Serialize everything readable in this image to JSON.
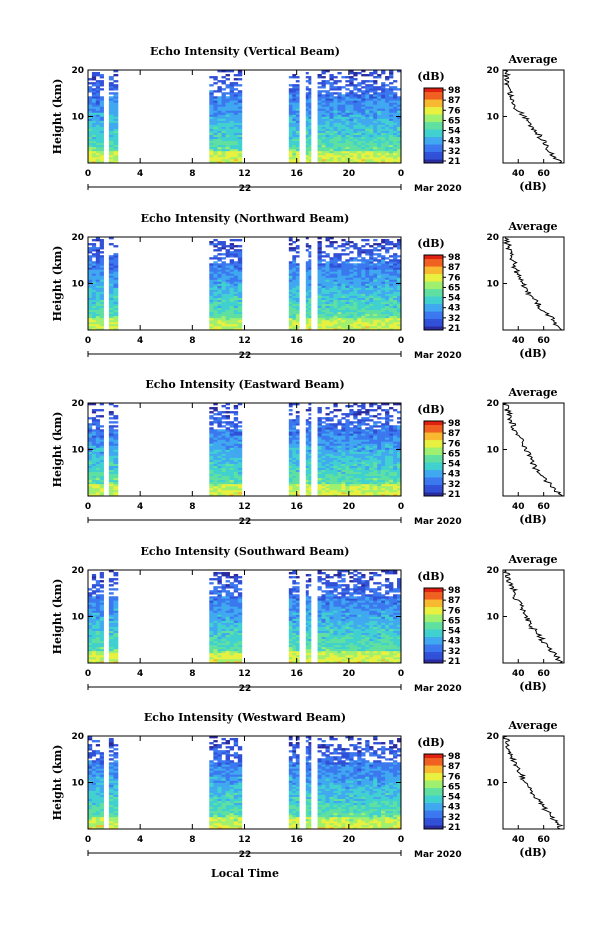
{
  "figure": {
    "x_axis_title": "Local Time",
    "date_label": "Mar 2020",
    "day_label": "22",
    "colorbar_unit": "(dB)",
    "avg_title": "Average",
    "avg_xlabel": "(dB)",
    "height_label": "Height (km)"
  },
  "colors": {
    "colormap": [
      "#2a2a9e",
      "#3050d8",
      "#3b78f0",
      "#40a8f0",
      "#40d0d0",
      "#60e0a0",
      "#a0f070",
      "#e8f040",
      "#f8b830",
      "#f06020",
      "#e02010"
    ]
  },
  "chart_data": [
    {
      "type": "heatmap",
      "title": "Echo Intensity (Vertical Beam)",
      "ylabel": "Height (km)",
      "xlabel": "Local Time",
      "x_ticks": [
        "0",
        "4",
        "8",
        "12",
        "16",
        "20",
        "0"
      ],
      "y_ticks": [
        "20",
        "10"
      ],
      "colorbar_ticks": [
        "98",
        "87",
        "76",
        "65",
        "54",
        "43",
        "32",
        "21"
      ],
      "xlim": [
        0,
        24
      ],
      "ylim": [
        0,
        20
      ],
      "data_segments_hours": [
        [
          0,
          1.2
        ],
        [
          1.6,
          2.3
        ],
        [
          9.3,
          11.8
        ],
        [
          15.4,
          16.2
        ],
        [
          16.7,
          17.1
        ],
        [
          17.6,
          24
        ]
      ],
      "average": {
        "title": "Average",
        "xlabel": "(dB)",
        "x_ticks": [
          "40",
          "60"
        ],
        "y_ticks": [
          "20",
          "10"
        ],
        "profile_db": [
          [
            0,
            74
          ],
          [
            2,
            66
          ],
          [
            4,
            62
          ],
          [
            6,
            56
          ],
          [
            8,
            50
          ],
          [
            10,
            45
          ],
          [
            11,
            42
          ],
          [
            12,
            38
          ],
          [
            14,
            34
          ],
          [
            16,
            33
          ],
          [
            18,
            31
          ],
          [
            20,
            30
          ]
        ]
      }
    },
    {
      "type": "heatmap",
      "title": "Echo Intensity (Northward Beam)",
      "ylabel": "Height (km)",
      "xlabel": "Local Time",
      "x_ticks": [
        "0",
        "4",
        "8",
        "12",
        "16",
        "20",
        "0"
      ],
      "y_ticks": [
        "20",
        "10"
      ],
      "colorbar_ticks": [
        "98",
        "87",
        "76",
        "65",
        "54",
        "43",
        "32",
        "21"
      ],
      "xlim": [
        0,
        24
      ],
      "ylim": [
        0,
        20
      ],
      "data_segments_hours": [
        [
          0,
          1.2
        ],
        [
          1.6,
          2.3
        ],
        [
          9.3,
          11.8
        ],
        [
          15.4,
          16.2
        ],
        [
          16.7,
          17.1
        ],
        [
          17.6,
          24
        ]
      ],
      "average": {
        "title": "Average",
        "xlabel": "(dB)",
        "x_ticks": [
          "40",
          "60"
        ],
        "y_ticks": [
          "20",
          "10"
        ],
        "profile_db": [
          [
            0,
            74
          ],
          [
            2,
            68
          ],
          [
            4,
            60
          ],
          [
            6,
            54
          ],
          [
            8,
            48
          ],
          [
            10,
            44
          ],
          [
            12,
            40
          ],
          [
            13,
            38
          ],
          [
            15,
            36
          ],
          [
            17,
            33
          ],
          [
            19,
            31
          ],
          [
            20,
            30
          ]
        ]
      }
    },
    {
      "type": "heatmap",
      "title": "Echo Intensity (Eastward Beam)",
      "ylabel": "Height (km)",
      "xlabel": "Local Time",
      "x_ticks": [
        "0",
        "4",
        "8",
        "12",
        "16",
        "20",
        "0"
      ],
      "y_ticks": [
        "20",
        "10"
      ],
      "colorbar_ticks": [
        "98",
        "87",
        "76",
        "65",
        "54",
        "43",
        "32",
        "21"
      ],
      "xlim": [
        0,
        24
      ],
      "ylim": [
        0,
        20
      ],
      "data_segments_hours": [
        [
          0,
          1.2
        ],
        [
          1.6,
          2.3
        ],
        [
          9.3,
          11.8
        ],
        [
          15.4,
          16.2
        ],
        [
          16.7,
          17.1
        ],
        [
          17.6,
          24
        ]
      ],
      "average": {
        "title": "Average",
        "xlabel": "(dB)",
        "x_ticks": [
          "40",
          "60"
        ],
        "y_ticks": [
          "20",
          "10"
        ],
        "profile_db": [
          [
            0,
            74
          ],
          [
            2,
            66
          ],
          [
            4,
            60
          ],
          [
            6,
            54
          ],
          [
            8,
            50
          ],
          [
            10,
            46
          ],
          [
            12,
            42
          ],
          [
            14,
            38
          ],
          [
            16,
            35
          ],
          [
            18,
            32
          ],
          [
            20,
            30
          ]
        ]
      }
    },
    {
      "type": "heatmap",
      "title": "Echo Intensity (Southward Beam)",
      "ylabel": "Height (km)",
      "xlabel": "Local Time",
      "x_ticks": [
        "0",
        "4",
        "8",
        "12",
        "16",
        "20",
        "0"
      ],
      "y_ticks": [
        "20",
        "10"
      ],
      "colorbar_ticks": [
        "98",
        "87",
        "76",
        "65",
        "54",
        "43",
        "32",
        "21"
      ],
      "xlim": [
        0,
        24
      ],
      "ylim": [
        0,
        20
      ],
      "data_segments_hours": [
        [
          0,
          1.2
        ],
        [
          1.6,
          2.3
        ],
        [
          9.3,
          11.8
        ],
        [
          15.4,
          16.2
        ],
        [
          16.7,
          17.1
        ],
        [
          17.6,
          24
        ]
      ],
      "average": {
        "title": "Average",
        "xlabel": "(dB)",
        "x_ticks": [
          "40",
          "60"
        ],
        "y_ticks": [
          "20",
          "10"
        ],
        "profile_db": [
          [
            0,
            74
          ],
          [
            2,
            68
          ],
          [
            4,
            62
          ],
          [
            6,
            56
          ],
          [
            8,
            50
          ],
          [
            10,
            46
          ],
          [
            12,
            42
          ],
          [
            14,
            38
          ],
          [
            16,
            36
          ],
          [
            18,
            32
          ],
          [
            20,
            30
          ]
        ]
      }
    },
    {
      "type": "heatmap",
      "title": "Echo Intensity (Westward Beam)",
      "ylabel": "Height (km)",
      "xlabel": "Local Time",
      "x_ticks": [
        "0",
        "4",
        "8",
        "12",
        "16",
        "20",
        "0"
      ],
      "y_ticks": [
        "20",
        "10"
      ],
      "colorbar_ticks": [
        "98",
        "87",
        "76",
        "65",
        "54",
        "43",
        "32",
        "21"
      ],
      "xlim": [
        0,
        24
      ],
      "ylim": [
        0,
        20
      ],
      "data_segments_hours": [
        [
          0,
          1.2
        ],
        [
          1.6,
          2.3
        ],
        [
          9.3,
          11.8
        ],
        [
          15.4,
          16.2
        ],
        [
          16.7,
          17.1
        ],
        [
          17.6,
          24
        ]
      ],
      "average": {
        "title": "Average",
        "xlabel": "(dB)",
        "x_ticks": [
          "40",
          "60"
        ],
        "y_ticks": [
          "20",
          "10"
        ],
        "profile_db": [
          [
            0,
            74
          ],
          [
            2,
            68
          ],
          [
            4,
            62
          ],
          [
            6,
            56
          ],
          [
            8,
            50
          ],
          [
            10,
            46
          ],
          [
            12,
            42
          ],
          [
            14,
            38
          ],
          [
            16,
            35
          ],
          [
            18,
            32
          ],
          [
            20,
            30
          ]
        ]
      }
    }
  ]
}
